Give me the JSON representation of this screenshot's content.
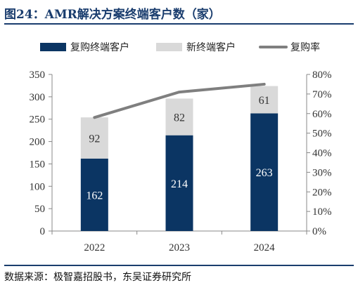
{
  "header": {
    "title": "图24：AMR解决方案终端客户数（家）"
  },
  "footer": {
    "source": "数据来源：极智嘉招股书，东吴证券研究所"
  },
  "colors": {
    "repeat_customers": "#0b3563",
    "new_customers": "#d9d9d9",
    "repurchase_rate": "#7f7f7f",
    "title_blue": "#1a3d6e"
  },
  "chart_data": {
    "type": "bar",
    "stacked": true,
    "categories": [
      "2022",
      "2023",
      "2024"
    ],
    "series": [
      {
        "name": "复购终端客户",
        "type": "bar",
        "axis": "left",
        "values": [
          162,
          214,
          263
        ]
      },
      {
        "name": "新终端客户",
        "type": "bar",
        "axis": "left",
        "values": [
          92,
          82,
          61
        ]
      },
      {
        "name": "复购率",
        "type": "line",
        "axis": "right",
        "values": [
          0.58,
          0.71,
          0.75
        ]
      }
    ],
    "left_axis": {
      "min": 0,
      "max": 350,
      "ticks": [
        "0",
        "50",
        "100",
        "150",
        "200",
        "250",
        "300",
        "350"
      ]
    },
    "right_axis": {
      "min": 0,
      "max": 0.8,
      "ticks": [
        "0%",
        "10%",
        "20%",
        "30%",
        "40%",
        "50%",
        "60%",
        "70%",
        "80%"
      ]
    },
    "legend_position": "top",
    "grid": false
  }
}
